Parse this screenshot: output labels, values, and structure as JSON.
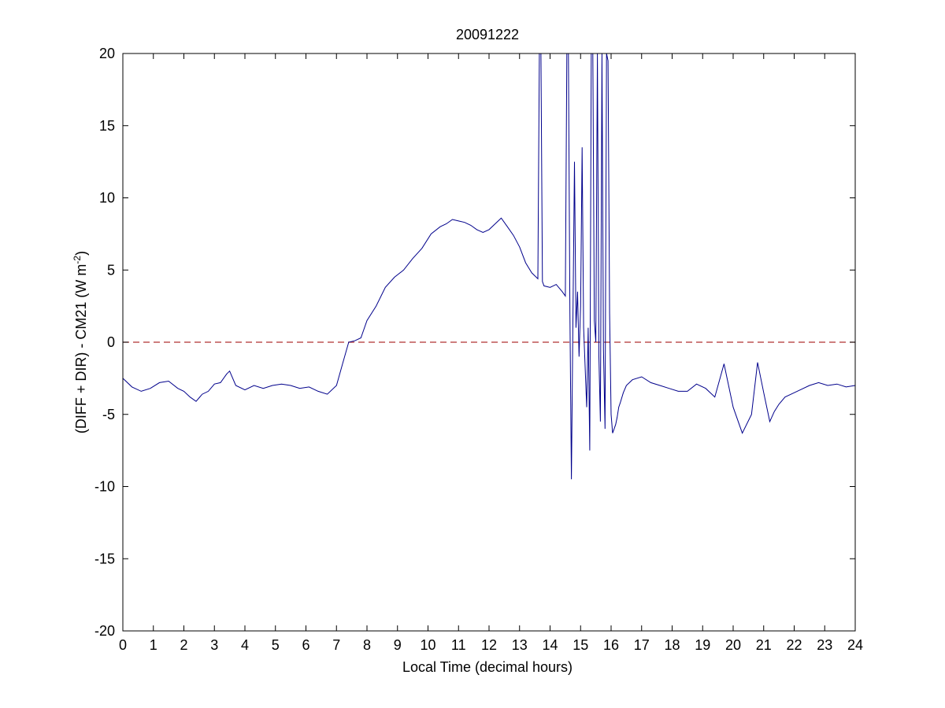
{
  "chart_data": {
    "type": "line",
    "title": "20091222",
    "xlabel": "Local Time (decimal hours)",
    "ylabel_main": "(DIFF + DIR) - CM21 (W m",
    "ylabel_sup": "-2",
    "ylabel_tail": ")",
    "xlim": [
      0,
      24
    ],
    "ylim": [
      -20,
      20
    ],
    "xticks": [
      0,
      1,
      2,
      3,
      4,
      5,
      6,
      7,
      8,
      9,
      10,
      11,
      12,
      13,
      14,
      15,
      16,
      17,
      18,
      19,
      20,
      21,
      22,
      23,
      24
    ],
    "yticks": [
      -20,
      -15,
      -10,
      -5,
      0,
      5,
      10,
      15,
      20
    ],
    "grid": false,
    "reference_line": {
      "y": 0,
      "color": "#b03030",
      "style": "dashed"
    },
    "series_color": "#00008b",
    "series": [
      {
        "x": [
          0.0,
          0.3,
          0.6,
          0.9,
          1.2,
          1.5,
          1.8,
          2.0,
          2.2,
          2.4,
          2.6,
          2.8,
          3.0,
          3.2,
          3.4,
          3.5,
          3.7,
          4.0,
          4.3,
          4.6,
          4.9,
          5.2,
          5.5,
          5.8,
          6.1,
          6.4,
          6.7,
          7.0,
          7.2,
          7.4,
          7.6,
          7.8,
          8.0,
          8.3,
          8.6,
          8.9,
          9.2,
          9.5,
          9.8,
          10.1,
          10.4,
          10.6,
          10.8,
          11.0,
          11.2,
          11.4,
          11.6,
          11.8,
          12.0,
          12.2,
          12.4,
          12.6,
          12.8,
          13.0,
          13.2,
          13.4,
          13.6,
          13.65,
          13.7,
          13.75,
          13.8,
          14.0,
          14.2,
          14.4,
          14.5,
          14.55,
          14.6,
          14.65,
          14.7,
          14.75,
          14.8,
          14.85,
          14.9,
          14.95,
          15.0,
          15.05,
          15.1,
          15.2,
          15.25,
          15.3,
          15.35,
          15.4,
          15.45,
          15.5,
          15.55,
          15.6,
          15.65,
          15.7,
          15.75,
          15.8,
          15.85,
          15.9,
          15.95,
          16.0,
          16.05,
          16.1,
          16.15,
          16.2,
          16.25,
          16.3,
          16.4,
          16.5,
          16.7,
          17.0,
          17.3,
          17.6,
          17.9,
          18.2,
          18.5,
          18.8,
          19.1,
          19.4,
          19.7,
          20.0,
          20.3,
          20.6,
          20.8,
          21.0,
          21.2,
          21.35,
          21.5,
          21.7,
          21.9,
          22.2,
          22.5,
          22.8,
          23.1,
          23.4,
          23.7,
          24.0
        ],
        "y": [
          -2.5,
          -3.1,
          -3.4,
          -3.2,
          -2.8,
          -2.7,
          -3.2,
          -3.4,
          -3.8,
          -4.1,
          -3.6,
          -3.4,
          -2.9,
          -2.8,
          -2.2,
          -2.0,
          -3.0,
          -3.3,
          -3.0,
          -3.2,
          -3.0,
          -2.9,
          -3.0,
          -3.2,
          -3.1,
          -3.4,
          -3.6,
          -3.0,
          -1.5,
          0.0,
          0.1,
          0.3,
          1.5,
          2.5,
          3.8,
          4.5,
          5.0,
          5.8,
          6.5,
          7.5,
          8.0,
          8.2,
          8.5,
          8.4,
          8.3,
          8.1,
          7.8,
          7.6,
          7.8,
          8.2,
          8.6,
          8.0,
          7.4,
          6.6,
          5.5,
          4.8,
          4.4,
          20.0,
          20.0,
          4.2,
          3.9,
          3.8,
          4.0,
          3.5,
          3.2,
          20.0,
          20.0,
          2.0,
          -9.5,
          2.0,
          12.5,
          1.0,
          3.5,
          -1.0,
          2.5,
          13.5,
          1.0,
          -4.5,
          1.0,
          -7.5,
          20.0,
          20.0,
          1.5,
          0.0,
          20.0,
          -1.0,
          -5.5,
          20.0,
          -0.5,
          -6.0,
          20.0,
          19.5,
          2.0,
          -5.0,
          -6.3,
          -6.0,
          -5.7,
          -5.2,
          -4.5,
          -4.2,
          -3.5,
          -3.0,
          -2.6,
          -2.4,
          -2.8,
          -3.0,
          -3.2,
          -3.4,
          -3.4,
          -2.9,
          -3.2,
          -3.8,
          -1.5,
          -4.5,
          -6.3,
          -5.0,
          -1.4,
          -3.5,
          -5.5,
          -4.8,
          -4.3,
          -3.8,
          -3.6,
          -3.3,
          -3.0,
          -2.8,
          -3.0,
          -2.9,
          -3.1,
          -3.0
        ]
      }
    ]
  }
}
